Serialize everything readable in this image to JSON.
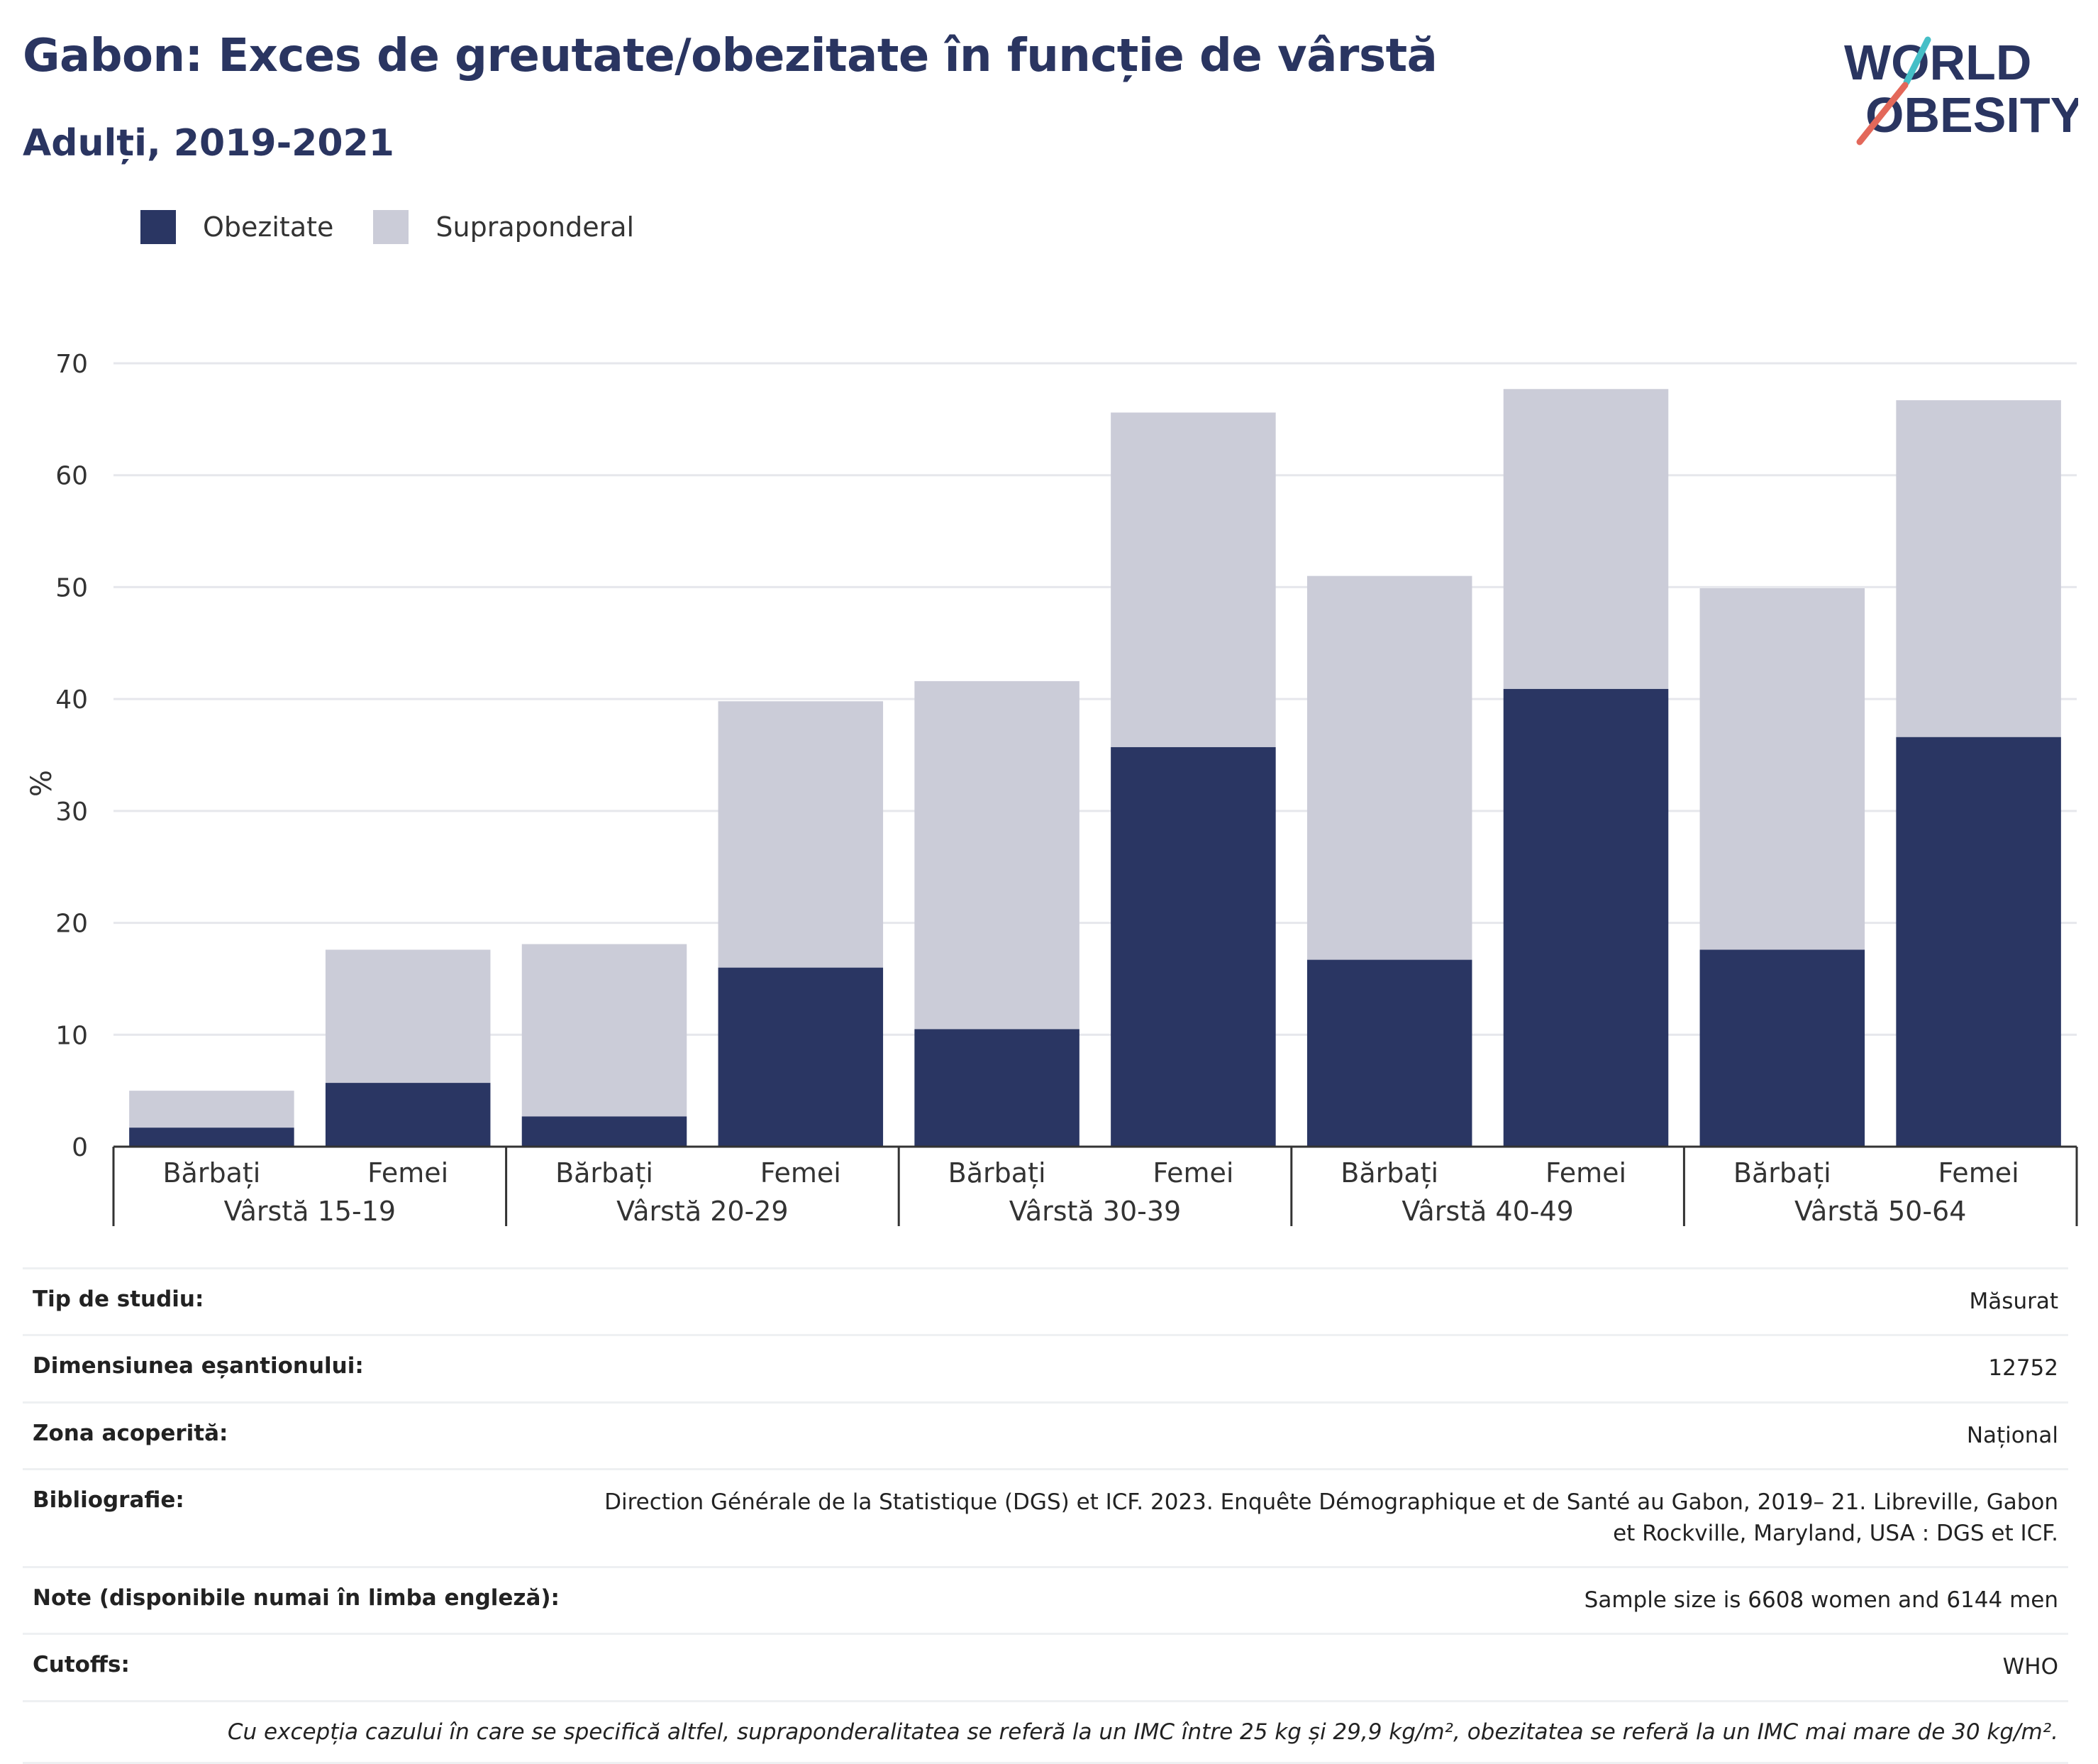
{
  "title": "Gabon: Exces de greutate/obezitate în funcție de vârstă",
  "subtitle": "Adulți, 2019-2021",
  "logo": {
    "line1": "WORLD",
    "line2": "OBESITY"
  },
  "colors": {
    "obesity": "#2a3663",
    "overweight": "#cbccd8",
    "text": "#2a3561",
    "grid": "#e6e7ec",
    "axis": "#333333",
    "logo_slash_top": "#46bfc7",
    "logo_slash_bottom": "#e3685a"
  },
  "legend": {
    "obesity_label": "Obezitate",
    "overweight_label": "Supraponderal"
  },
  "chart_data": {
    "type": "bar",
    "stacked": true,
    "ylabel": "%",
    "ylim": [
      0,
      70
    ],
    "yticks": [
      0,
      10,
      20,
      30,
      40,
      50,
      60,
      70
    ],
    "grid": true,
    "legend_position": "top-left",
    "groups": [
      "Vârstă 15-19",
      "Vârstă 20-29",
      "Vârstă 30-39",
      "Vârstă 40-49",
      "Vârstă 50-64"
    ],
    "subcategories": [
      "Bărbați",
      "Femei"
    ],
    "series": [
      {
        "name": "Obezitate",
        "values": [
          1.7,
          5.7,
          2.7,
          16.0,
          10.5,
          35.7,
          16.7,
          40.9,
          17.6,
          36.6
        ]
      },
      {
        "name": "Supraponderal",
        "values": [
          3.3,
          11.9,
          15.4,
          23.8,
          31.1,
          29.9,
          34.3,
          26.8,
          32.3,
          30.1
        ]
      }
    ]
  },
  "metadata": [
    {
      "label": "Tip de studiu:",
      "value": "Măsurat"
    },
    {
      "label": "Dimensiunea eșantionului:",
      "value": "12752"
    },
    {
      "label": "Zona acoperită:",
      "value": "Național"
    },
    {
      "label": "Bibliografie:",
      "value": "Direction Générale de la Statistique (DGS) et ICF. 2023. Enquête Démographique et de Santé au Gabon, 2019– 21. Libreville, Gabon et Rockville, Maryland, USA : DGS et ICF."
    },
    {
      "label": "Note (disponibile numai în limba engleză):",
      "value": "Sample size is 6608 women and 6144 men"
    },
    {
      "label": "Cutoffs:",
      "value": "WHO"
    }
  ],
  "footnote": "Cu excepția cazului în care se specifică altfel, supraponderalitatea se referă la un IMC între 25 kg și 29,9 kg/m², obezitatea se referă la un IMC mai mare de 30 kg/m²."
}
